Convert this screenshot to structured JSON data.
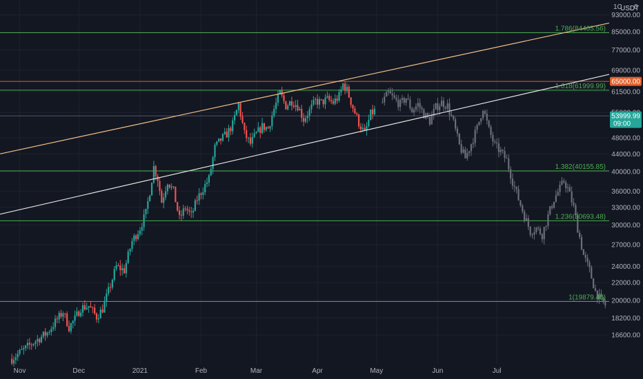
{
  "chart_data": {
    "type": "candlestick",
    "unit_label": "USDT",
    "top_clipped_label": "1C",
    "top_clipped_label_tail": "0",
    "ylim": [
      14000,
      100000
    ],
    "y_scale": "log",
    "y_ticks": [
      "93000.00",
      "85000.00",
      "77000.00",
      "69000.00",
      "61500.00",
      "55000.00",
      "48000.00",
      "44000.00",
      "40000.00",
      "36000.00",
      "33000.00",
      "30000.00",
      "27000.00",
      "24000.00",
      "22000.00",
      "20000.00",
      "18200.00",
      "16600.00"
    ],
    "x_labels": [
      "Nov",
      "Dec",
      "2021",
      "Feb",
      "Mar",
      "Apr",
      "May",
      "Jun",
      "Jul"
    ],
    "x_range": [
      "2020-10-22",
      "2021-08-27"
    ],
    "fib_levels": [
      {
        "label": "1.786(84465.56)",
        "value": 84465.56
      },
      {
        "label": "1.618(61999.99)",
        "value": 61999.99
      },
      {
        "label": "1.382(40155.85)",
        "value": 40155.85
      },
      {
        "label": "1.236(30693.48)",
        "value": 30693.48
      },
      {
        "label": "1(19879.40)",
        "value": 19879.4
      }
    ],
    "price_tags": [
      {
        "label": "65000.00",
        "value": 65000,
        "color": "#e0622d"
      },
      {
        "label": "53999.99",
        "sub": "09:00",
        "value": 53999.99,
        "color": "#26a69a"
      }
    ],
    "trendlines": [
      {
        "color": "#f5c28a",
        "from": {
          "x": "2020-10-22",
          "y": 44000
        },
        "to": {
          "x": "2021-08-27",
          "y": 89000
        }
      },
      {
        "color": "#e6e6e6",
        "from": {
          "x": "2020-10-22",
          "y": 31800
        },
        "to": {
          "x": "2021-08-27",
          "y": 67500
        }
      }
    ],
    "series": [
      {
        "style": "colored",
        "points": [
          [
            "2020-10-28",
            14600
          ],
          [
            "2020-11-02",
            15200
          ],
          [
            "2020-11-06",
            15700
          ],
          [
            "2020-11-10",
            16200
          ],
          [
            "2020-11-15",
            16800
          ],
          [
            "2020-11-19",
            17800
          ],
          [
            "2020-11-23",
            18800
          ],
          [
            "2020-11-26",
            17300
          ],
          [
            "2020-11-29",
            18100
          ],
          [
            "2020-12-02",
            19200
          ],
          [
            "2020-12-06",
            19400
          ],
          [
            "2020-12-10",
            18300
          ],
          [
            "2020-12-13",
            19100
          ],
          [
            "2020-12-16",
            21000
          ],
          [
            "2020-12-20",
            24000
          ],
          [
            "2020-12-24",
            23500
          ],
          [
            "2020-12-28",
            27500
          ],
          [
            "2021-01-01",
            29500
          ],
          [
            "2021-01-04",
            32000
          ],
          [
            "2021-01-06",
            36000
          ],
          [
            "2021-01-08",
            41000
          ],
          [
            "2021-01-10",
            38500
          ],
          [
            "2021-01-12",
            34000
          ],
          [
            "2021-01-15",
            38000
          ],
          [
            "2021-01-18",
            36000
          ],
          [
            "2021-01-21",
            31000
          ],
          [
            "2021-01-24",
            33000
          ],
          [
            "2021-01-27",
            31500
          ],
          [
            "2021-01-30",
            34500
          ],
          [
            "2021-02-02",
            36500
          ],
          [
            "2021-02-05",
            38500
          ],
          [
            "2021-02-08",
            45500
          ],
          [
            "2021-02-11",
            47500
          ],
          [
            "2021-02-14",
            49000
          ],
          [
            "2021-02-17",
            51500
          ],
          [
            "2021-02-20",
            57500
          ],
          [
            "2021-02-23",
            49000
          ],
          [
            "2021-02-26",
            46500
          ],
          [
            "2021-03-01",
            49000
          ],
          [
            "2021-03-04",
            51000
          ],
          [
            "2021-03-07",
            50500
          ],
          [
            "2021-03-10",
            56000
          ],
          [
            "2021-03-13",
            61000
          ],
          [
            "2021-03-16",
            57000
          ],
          [
            "2021-03-19",
            58500
          ],
          [
            "2021-03-22",
            57000
          ],
          [
            "2021-03-25",
            53000
          ],
          [
            "2021-03-28",
            55500
          ],
          [
            "2021-03-31",
            58500
          ],
          [
            "2021-04-03",
            58000
          ],
          [
            "2021-04-06",
            59000
          ],
          [
            "2021-04-09",
            58000
          ],
          [
            "2021-04-12",
            60000
          ],
          [
            "2021-04-14",
            64000
          ],
          [
            "2021-04-16",
            62000
          ],
          [
            "2021-04-19",
            56500
          ],
          [
            "2021-04-22",
            52000
          ],
          [
            "2021-04-25",
            49000
          ],
          [
            "2021-04-28",
            54500
          ],
          [
            "2021-05-01",
            56000
          ]
        ]
      },
      {
        "style": "ghost",
        "points": [
          [
            "2021-05-04",
            58000
          ],
          [
            "2021-05-07",
            61000
          ],
          [
            "2021-05-10",
            59000
          ],
          [
            "2021-05-13",
            57500
          ],
          [
            "2021-05-16",
            59500
          ],
          [
            "2021-05-19",
            55500
          ],
          [
            "2021-05-22",
            57500
          ],
          [
            "2021-05-25",
            54500
          ],
          [
            "2021-05-28",
            52500
          ],
          [
            "2021-05-31",
            56500
          ],
          [
            "2021-06-03",
            58000
          ],
          [
            "2021-06-06",
            57000
          ],
          [
            "2021-06-09",
            52000
          ],
          [
            "2021-06-12",
            46000
          ],
          [
            "2021-06-15",
            43000
          ],
          [
            "2021-06-18",
            46500
          ],
          [
            "2021-06-21",
            50500
          ],
          [
            "2021-06-24",
            56500
          ],
          [
            "2021-06-27",
            50000
          ],
          [
            "2021-06-30",
            46000
          ],
          [
            "2021-07-03",
            44500
          ],
          [
            "2021-07-06",
            42500
          ],
          [
            "2021-07-09",
            38000
          ],
          [
            "2021-07-12",
            34500
          ],
          [
            "2021-07-15",
            31500
          ],
          [
            "2021-07-18",
            29000
          ],
          [
            "2021-07-21",
            29500
          ],
          [
            "2021-07-24",
            28500
          ],
          [
            "2021-07-27",
            31500
          ],
          [
            "2021-07-30",
            34500
          ],
          [
            "2021-08-02",
            36500
          ],
          [
            "2021-08-04",
            38000
          ],
          [
            "2021-08-06",
            36500
          ],
          [
            "2021-08-09",
            33000
          ],
          [
            "2021-08-11",
            29500
          ],
          [
            "2021-08-14",
            25500
          ],
          [
            "2021-08-17",
            23500
          ],
          [
            "2021-08-20",
            21000
          ],
          [
            "2021-08-23",
            19900
          ],
          [
            "2021-08-26",
            19300
          ]
        ]
      }
    ],
    "colors": {
      "background": "#131722",
      "grid": "#1e2230",
      "fib_line": "#4caf50",
      "fib_label": "#4caf50",
      "up": "#26a69a",
      "down": "#ef5350",
      "ghost": "#6b6f7a",
      "axis_text": "#b2b5be",
      "price_line_white": "#c8cbd3"
    }
  }
}
